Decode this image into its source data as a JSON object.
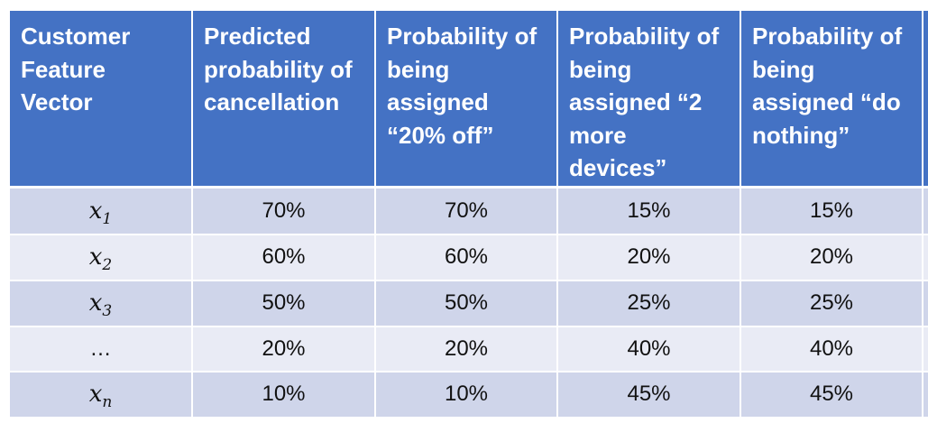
{
  "table": {
    "headers": [
      [
        "Customer",
        "Feature",
        "Vector"
      ],
      [
        "Predicted",
        "probability of",
        "cancellation"
      ],
      [
        "Probability of",
        "being",
        "assigned",
        "“20% off”"
      ],
      [
        "Probability of",
        "being",
        "assigned “2",
        "more",
        "devices”"
      ],
      [
        "Probability of",
        "being",
        "assigned “do",
        "nothing”"
      ]
    ],
    "rows": [
      {
        "var": "x",
        "sub": "1",
        "label": "",
        "values": [
          "70%",
          "70%",
          "15%",
          "15%"
        ]
      },
      {
        "var": "x",
        "sub": "2",
        "label": "",
        "values": [
          "60%",
          "60%",
          "20%",
          "20%"
        ]
      },
      {
        "var": "x",
        "sub": "3",
        "label": "",
        "values": [
          "50%",
          "50%",
          "25%",
          "25%"
        ]
      },
      {
        "var": "",
        "sub": "",
        "label": "…",
        "values": [
          "20%",
          "20%",
          "40%",
          "40%"
        ]
      },
      {
        "var": "x",
        "sub": "n",
        "label": "",
        "values": [
          "10%",
          "10%",
          "45%",
          "45%"
        ]
      }
    ]
  },
  "colors": {
    "header_bg": "#4472c4",
    "row_dark": "#cfd5ea",
    "row_light": "#e9ebf5",
    "border": "#ffffff"
  }
}
